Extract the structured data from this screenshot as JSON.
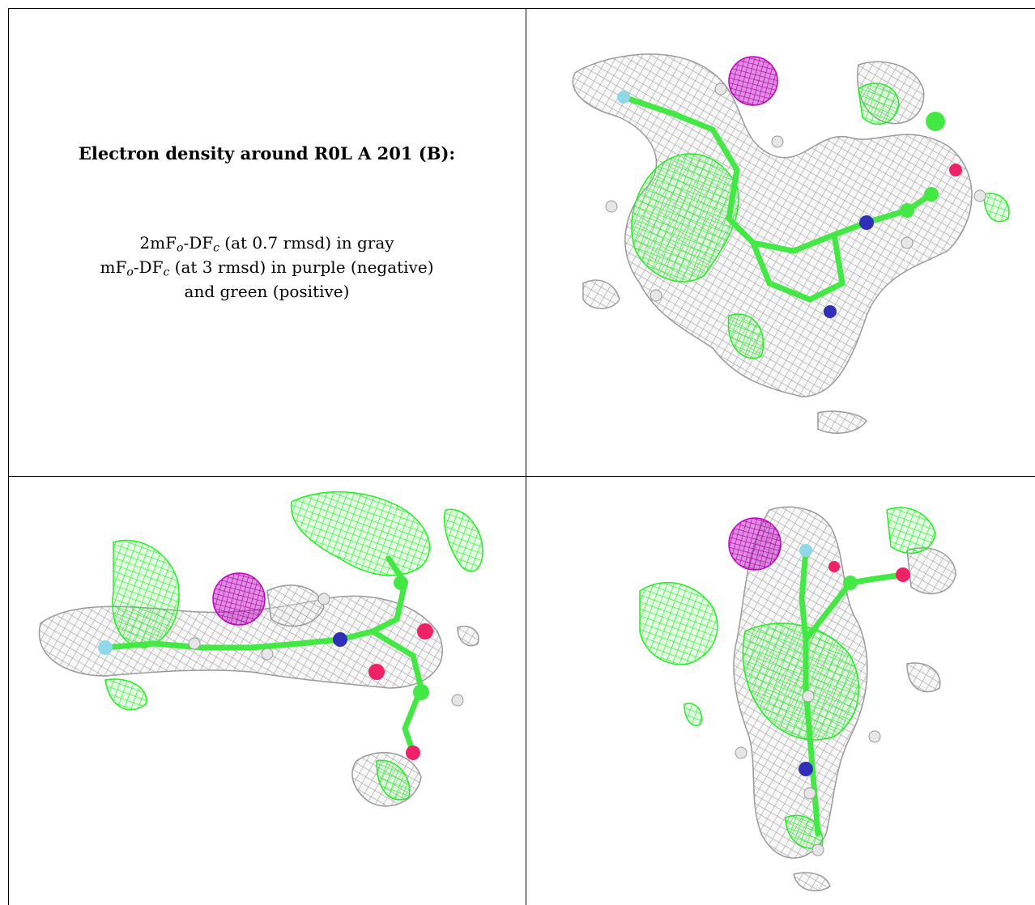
{
  "caption": {
    "title": "Electron density around R0L A 201 (B):",
    "line1_a": "2mF",
    "line1_sub_o": "o",
    "line1_b": "-DF",
    "line1_sub_c": "c",
    "line1_c": " (at 0.7 rmsd) in gray",
    "line2_a": "mF",
    "line2_sub_o": "o",
    "line2_b": "-DF",
    "line2_sub_c": "c",
    "line2_c": " (at 3 rmsd) in purple (negative)",
    "line3": "and green (positive)"
  },
  "colors": {
    "map_2fofc": "#a8a8a8",
    "map_fofc_negative": "#c000c0",
    "map_fofc_positive": "#22ee22",
    "carbon": "#44e844",
    "nitrogen": "#2f2fb8",
    "oxygen": "#ee2266",
    "fluorine": "#8fd8e8",
    "hydrogen": "#e6e6e6"
  }
}
